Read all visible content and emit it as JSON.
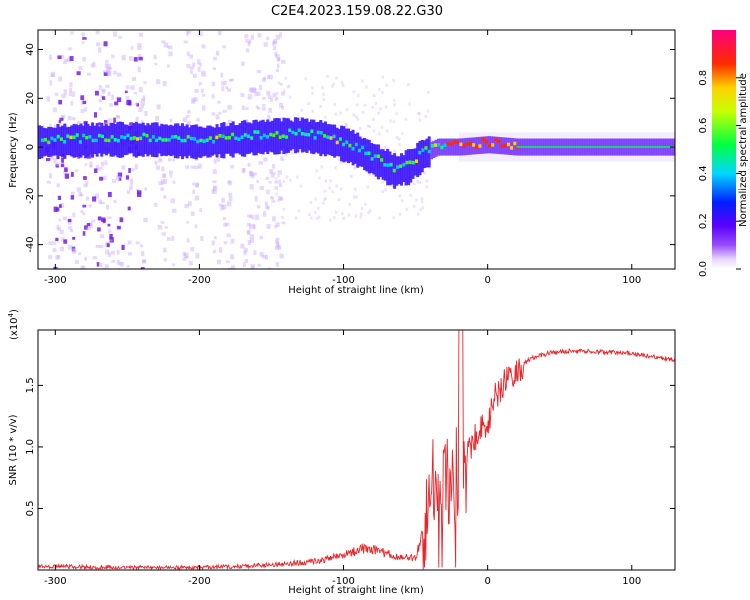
{
  "title": "C2E4.2023.159.08.22.G30",
  "chart_data": [
    {
      "type": "heatmap",
      "xlabel": "Height of straight line (km)",
      "ylabel": "Frequency (Hz)",
      "xlim": [
        -312,
        130
      ],
      "ylim": [
        -50,
        48
      ],
      "xticks": [
        -300,
        -200,
        -100,
        0,
        100
      ],
      "yticks": [
        -40,
        -20,
        0,
        20,
        40
      ],
      "colorbar": {
        "label": "Normalized spectral amplitude",
        "ticks": [
          "0.0",
          "0.2",
          "0.4",
          "0.6",
          "0.8"
        ],
        "range": [
          0,
          1
        ]
      },
      "ridge_center_hz": [
        {
          "x": -310,
          "y": 2
        },
        {
          "x": -270,
          "y": 3
        },
        {
          "x": -230,
          "y": 3
        },
        {
          "x": -200,
          "y": 2
        },
        {
          "x": -160,
          "y": 4
        },
        {
          "x": -130,
          "y": 5
        },
        {
          "x": -110,
          "y": 3
        },
        {
          "x": -95,
          "y": 0
        },
        {
          "x": -80,
          "y": -5
        },
        {
          "x": -65,
          "y": -10
        },
        {
          "x": -55,
          "y": -8
        },
        {
          "x": -45,
          "y": -3
        },
        {
          "x": -35,
          "y": 0
        },
        {
          "x": -20,
          "y": 0
        },
        {
          "x": 0,
          "y": 1
        },
        {
          "x": 20,
          "y": 0
        },
        {
          "x": 60,
          "y": 0
        },
        {
          "x": 130,
          "y": 0
        }
      ]
    },
    {
      "type": "line",
      "xlabel": "Height of straight line (km)",
      "ylabel": "SNR (10 * v/v)",
      "y_multiplier": "(x10^4)",
      "xlim": [
        -312,
        130
      ],
      "ylim": [
        0,
        1.95
      ],
      "xticks": [
        -300,
        -200,
        -100,
        0,
        100
      ],
      "yticks": [
        "0.5",
        "1.0",
        "1.5"
      ],
      "series": [
        {
          "color": "#e8252a",
          "points": [
            {
              "x": -312,
              "y": 0.03
            },
            {
              "x": -250,
              "y": 0.02
            },
            {
              "x": -200,
              "y": 0.02
            },
            {
              "x": -170,
              "y": 0.03
            },
            {
              "x": -140,
              "y": 0.05
            },
            {
              "x": -120,
              "y": 0.07
            },
            {
              "x": -100,
              "y": 0.12
            },
            {
              "x": -85,
              "y": 0.18
            },
            {
              "x": -75,
              "y": 0.15
            },
            {
              "x": -60,
              "y": 0.1
            },
            {
              "x": -50,
              "y": 0.1
            },
            {
              "x": -40,
              "y": 0.5
            },
            {
              "x": -35,
              "y": 0.9
            },
            {
              "x": -30,
              "y": 0.7
            },
            {
              "x": -25,
              "y": 0.8
            },
            {
              "x": -20,
              "y": 0.75
            },
            {
              "x": -15,
              "y": 0.9
            },
            {
              "x": -10,
              "y": 1.05
            },
            {
              "x": -5,
              "y": 1.15
            },
            {
              "x": 0,
              "y": 1.2
            },
            {
              "x": 5,
              "y": 1.4
            },
            {
              "x": 10,
              "y": 1.5
            },
            {
              "x": 20,
              "y": 1.62
            },
            {
              "x": 30,
              "y": 1.72
            },
            {
              "x": 45,
              "y": 1.77
            },
            {
              "x": 60,
              "y": 1.78
            },
            {
              "x": 80,
              "y": 1.77
            },
            {
              "x": 100,
              "y": 1.76
            },
            {
              "x": 115,
              "y": 1.73
            },
            {
              "x": 130,
              "y": 1.71
            }
          ]
        }
      ]
    }
  ]
}
